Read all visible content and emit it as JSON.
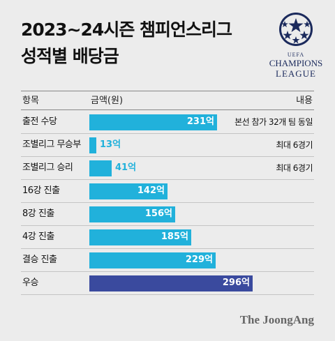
{
  "title": {
    "line1": "2023~24시즌 챔피언스리그",
    "line2": "성적별 배당금"
  },
  "logo": {
    "uefa": "UEFA",
    "champions": "CHAMPIONS",
    "league": "LEAGUE"
  },
  "headers": {
    "item": "항목",
    "amount": "금액(원)",
    "detail": "내용"
  },
  "colors": {
    "bar": "#21b1db",
    "highlight": "#3a4a9e",
    "value_outside": "#21b1db",
    "value_inside": "#ffffff"
  },
  "chart_data": {
    "type": "bar",
    "orientation": "horizontal",
    "unit": "억",
    "categories": [
      "출전 수당",
      "조별리그 무승부",
      "조별리그 승리",
      "16강 진출",
      "8강 진출",
      "4강 진출",
      "결승 진출",
      "우승"
    ],
    "values": [
      231,
      13,
      41,
      142,
      156,
      185,
      229,
      296
    ],
    "value_labels": [
      "231억",
      "13억",
      "41억",
      "142억",
      "156억",
      "185억",
      "229억",
      "296억"
    ],
    "notes": [
      "본선 참가 32개 팀 동일",
      "최대 6경기",
      "최대 6경기",
      "",
      "",
      "",
      "",
      ""
    ],
    "highlight_index": 7,
    "xlim": [
      0,
      296
    ]
  },
  "source": "The JoongAng"
}
